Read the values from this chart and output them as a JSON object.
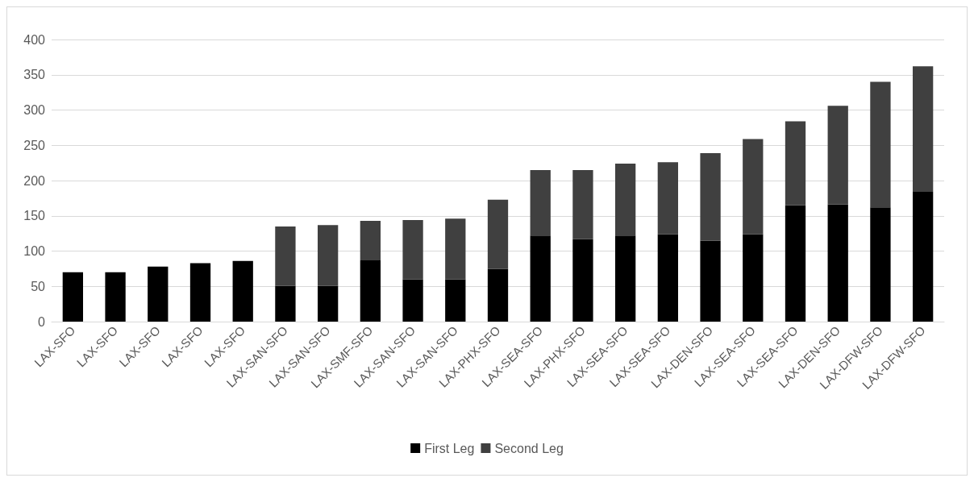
{
  "chart_data": {
    "type": "bar",
    "stacked": true,
    "categories": [
      "LAX-SFO",
      "LAX-SFO",
      "LAX-SFO",
      "LAX-SFO",
      "LAX-SFO",
      "LAX-SAN-SFO",
      "LAX-SAN-SFO",
      "LAX-SMF-SFO",
      "LAX-SAN-SFO",
      "LAX-SAN-SFO",
      "LAX-PHX-SFO",
      "LAX-SEA-SFO",
      "LAX-PHX-SFO",
      "LAX-SEA-SFO",
      "LAX-SEA-SFO",
      "LAX-DEN-SFO",
      "LAX-SEA-SFO",
      "LAX-SEA-SFO",
      "LAX-DEN-SFO",
      "LAX-DFW-SFO",
      "LAX-DFW-SFO"
    ],
    "series": [
      {
        "name": "First Leg",
        "color": "#000000",
        "values": [
          70,
          70,
          78,
          83,
          86,
          51,
          51,
          87,
          60,
          60,
          75,
          122,
          117,
          122,
          124,
          115,
          124,
          165,
          166,
          162,
          184
        ]
      },
      {
        "name": "Second Leg",
        "color": "#404040",
        "values": [
          0,
          0,
          0,
          0,
          0,
          84,
          86,
          56,
          84,
          86,
          98,
          93,
          98,
          102,
          102,
          124,
          135,
          119,
          140,
          178,
          178
        ]
      }
    ],
    "ylim": [
      0,
      400
    ],
    "yticks": [
      0,
      50,
      100,
      150,
      200,
      250,
      300,
      350,
      400
    ],
    "grid": "y",
    "legend": "bottom"
  }
}
